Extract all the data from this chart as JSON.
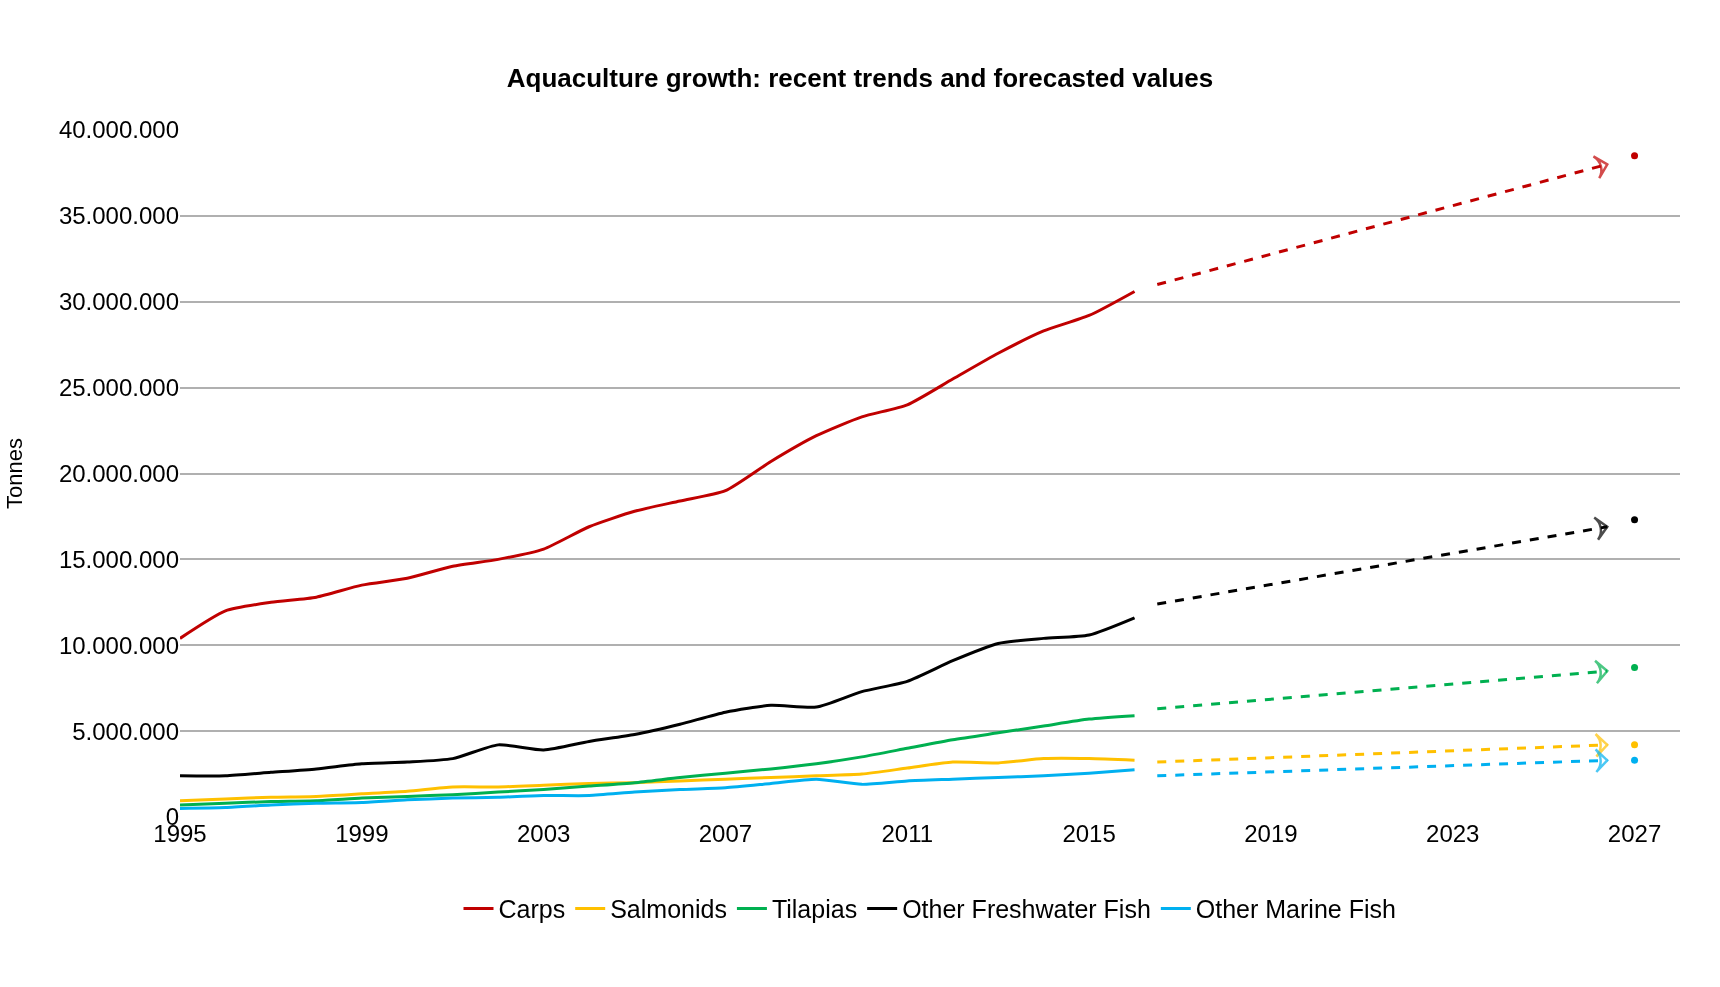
{
  "chart_data": {
    "type": "line",
    "title": "Aquaculture growth: recent trends and forecasted values",
    "ylabel": "Tonnes",
    "x": [
      1995,
      1996,
      1997,
      1998,
      1999,
      2000,
      2001,
      2002,
      2003,
      2004,
      2005,
      2006,
      2007,
      2008,
      2009,
      2010,
      2011,
      2012,
      2013,
      2014,
      2015,
      2016
    ],
    "series": [
      {
        "name": "Carps",
        "color": "#c00000",
        "values": [
          10400000,
          12000000,
          12500000,
          12800000,
          13500000,
          13900000,
          14600000,
          15000000,
          15600000,
          16900000,
          17800000,
          18400000,
          19000000,
          20700000,
          22200000,
          23300000,
          24000000,
          25500000,
          27000000,
          28300000,
          29200000,
          30600000
        ]
      },
      {
        "name": "Salmonids",
        "color": "#ffc000",
        "values": [
          950000,
          1050000,
          1150000,
          1200000,
          1350000,
          1500000,
          1750000,
          1750000,
          1850000,
          1950000,
          2000000,
          2100000,
          2200000,
          2300000,
          2400000,
          2500000,
          2850000,
          3200000,
          3150000,
          3400000,
          3400000,
          3300000
        ]
      },
      {
        "name": "Tilapias",
        "color": "#00b050",
        "values": [
          700000,
          800000,
          900000,
          950000,
          1100000,
          1200000,
          1300000,
          1450000,
          1600000,
          1800000,
          2000000,
          2300000,
          2550000,
          2800000,
          3100000,
          3500000,
          4000000,
          4500000,
          4900000,
          5300000,
          5700000,
          5900000
        ]
      },
      {
        "name": "Other Freshwater Fish",
        "color": "#000000",
        "values": [
          2400000,
          2400000,
          2600000,
          2800000,
          3100000,
          3200000,
          3400000,
          4200000,
          3900000,
          4400000,
          4800000,
          5400000,
          6100000,
          6500000,
          6400000,
          7300000,
          7900000,
          9100000,
          10100000,
          10400000,
          10600000,
          11600000
        ]
      },
      {
        "name": "Other Marine Fish",
        "color": "#00b0f0",
        "values": [
          500000,
          550000,
          700000,
          800000,
          850000,
          1000000,
          1100000,
          1150000,
          1250000,
          1250000,
          1450000,
          1600000,
          1700000,
          1950000,
          2200000,
          1900000,
          2100000,
          2200000,
          2300000,
          2400000,
          2550000,
          2750000
        ]
      },
      {
        "type": "line",
        "line_style": "dashed",
        "color": "#c00000",
        "x": [
          2016.5,
          2026.4
        ],
        "values": [
          31000000,
          38000000
        ]
      },
      {
        "type": "line",
        "line_style": "dashed",
        "color": "#ffc000",
        "x": [
          2016.5,
          2026.4
        ],
        "values": [
          3200000,
          4200000
        ]
      },
      {
        "type": "line",
        "line_style": "dashed",
        "color": "#00b050",
        "x": [
          2016.5,
          2026.4
        ],
        "values": [
          6300000,
          8500000
        ]
      },
      {
        "type": "line",
        "line_style": "dashed",
        "color": "#000000",
        "x": [
          2016.5,
          2026.4
        ],
        "values": [
          12400000,
          16900000
        ]
      },
      {
        "type": "line",
        "line_style": "dashed",
        "color": "#00b0f0",
        "x": [
          2016.5,
          2026.4
        ],
        "values": [
          2400000,
          3300000
        ]
      },
      {
        "type": "scatter",
        "marker": "circle",
        "color": "#c00000",
        "x": [
          2027
        ],
        "values": [
          38500000
        ]
      },
      {
        "type": "scatter",
        "marker": "circle",
        "color": "#ffc000",
        "x": [
          2027
        ],
        "values": [
          4200000
        ]
      },
      {
        "type": "scatter",
        "marker": "circle",
        "color": "#00b050",
        "x": [
          2027
        ],
        "values": [
          8700000
        ]
      },
      {
        "type": "scatter",
        "marker": "circle",
        "color": "#000000",
        "x": [
          2027
        ],
        "values": [
          17300000
        ]
      },
      {
        "type": "scatter",
        "marker": "circle",
        "color": "#00b0f0",
        "x": [
          2027
        ],
        "values": [
          3300000
        ]
      }
    ],
    "xlim": [
      1995,
      2028
    ],
    "xticks": [
      1995,
      1999,
      2003,
      2007,
      2011,
      2015,
      2019,
      2023,
      2027
    ],
    "ylim": [
      0,
      40000000
    ],
    "yticks": [
      {
        "value": 0,
        "label": "0"
      },
      {
        "value": 5000000,
        "label": "5.000.000"
      },
      {
        "value": 10000000,
        "label": "10.000.000"
      },
      {
        "value": 15000000,
        "label": "15.000.000"
      },
      {
        "value": 20000000,
        "label": "20.000.000"
      },
      {
        "value": 25000000,
        "label": "25.000.000"
      },
      {
        "value": 30000000,
        "label": "30.000.000"
      },
      {
        "value": 35000000,
        "label": "35.000.000"
      },
      {
        "value": 40000000,
        "label": "40.000.000"
      }
    ],
    "grid": "y",
    "legend": "bottom",
    "marker": "none",
    "line_style": "solid"
  }
}
